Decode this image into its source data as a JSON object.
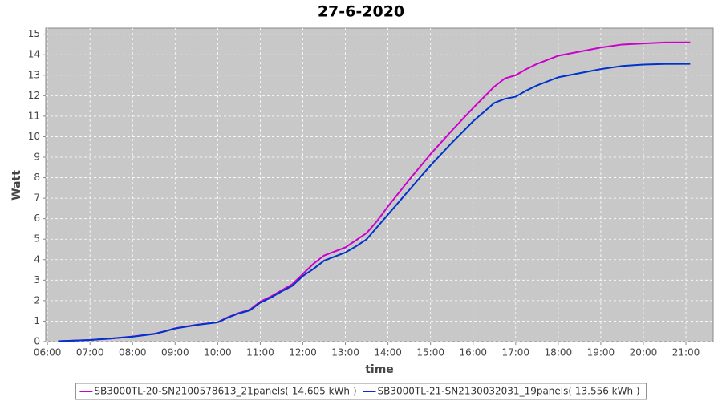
{
  "chart_data": {
    "type": "line",
    "title": "27-6-2020",
    "x_label": "time",
    "y_label": "Watt",
    "x": [
      6.25,
      6.5,
      7,
      7.5,
      8,
      8.5,
      8.75,
      9,
      9.5,
      10,
      10.25,
      10.5,
      10.75,
      11,
      11.25,
      11.5,
      11.75,
      12,
      12.25,
      12.5,
      12.75,
      13,
      13.25,
      13.5,
      13.75,
      14,
      14.5,
      15,
      15.5,
      16,
      16.5,
      16.75,
      17,
      17.25,
      17.5,
      17.75,
      18,
      18.5,
      19,
      19.5,
      20,
      20.5,
      21.1
    ],
    "series": [
      {
        "name": "SB3000TL-20-SN2100578613_21panels( 14.605 kWh )",
        "color": "#cc00cc",
        "values": [
          0.02,
          0.04,
          0.08,
          0.15,
          0.25,
          0.38,
          0.5,
          0.65,
          0.82,
          0.95,
          1.2,
          1.4,
          1.55,
          1.95,
          2.2,
          2.5,
          2.8,
          3.3,
          3.8,
          4.2,
          4.4,
          4.6,
          4.95,
          5.3,
          5.9,
          6.6,
          7.9,
          9.15,
          10.3,
          11.4,
          12.45,
          12.85,
          13.0,
          13.3,
          13.55,
          13.75,
          13.95,
          14.15,
          14.35,
          14.5,
          14.55,
          14.6,
          14.605
        ]
      },
      {
        "name": "SB3000TL-21-SN2130032031_19panels( 13.556 kWh )",
        "color": "#0033cc",
        "values": [
          0.02,
          0.04,
          0.08,
          0.15,
          0.24,
          0.37,
          0.5,
          0.64,
          0.81,
          0.94,
          1.18,
          1.38,
          1.52,
          1.9,
          2.15,
          2.45,
          2.72,
          3.2,
          3.55,
          3.95,
          4.15,
          4.35,
          4.65,
          5.0,
          5.6,
          6.2,
          7.4,
          8.6,
          9.7,
          10.75,
          11.65,
          11.85,
          11.95,
          12.25,
          12.5,
          12.7,
          12.9,
          13.1,
          13.3,
          13.45,
          13.52,
          13.55,
          13.556
        ]
      }
    ],
    "xlim": [
      5.96,
      21.64
    ],
    "ylim": [
      0,
      15.3
    ],
    "xticks": [
      {
        "value": 6,
        "label": "06:00"
      },
      {
        "value": 7,
        "label": "07:00"
      },
      {
        "value": 8,
        "label": "08:00"
      },
      {
        "value": 9,
        "label": "09:00"
      },
      {
        "value": 10,
        "label": "10:00"
      },
      {
        "value": 11,
        "label": "11:00"
      },
      {
        "value": 12,
        "label": "12:00"
      },
      {
        "value": 13,
        "label": "13:00"
      },
      {
        "value": 14,
        "label": "14:00"
      },
      {
        "value": 15,
        "label": "15:00"
      },
      {
        "value": 16,
        "label": "16:00"
      },
      {
        "value": 17,
        "label": "17:00"
      },
      {
        "value": 18,
        "label": "18:00"
      },
      {
        "value": 19,
        "label": "19:00"
      },
      {
        "value": 20,
        "label": "20:00"
      },
      {
        "value": 21,
        "label": "21:00"
      }
    ],
    "yticks": [
      0,
      1,
      2,
      3,
      4,
      5,
      6,
      7,
      8,
      9,
      10,
      11,
      12,
      13,
      14,
      15
    ],
    "grid": true,
    "legend": "bottom"
  }
}
